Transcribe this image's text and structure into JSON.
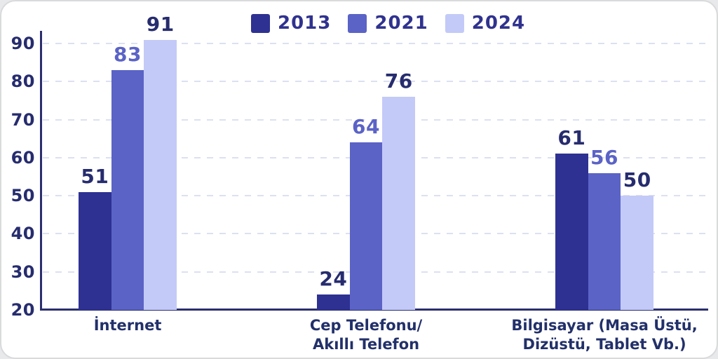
{
  "colors": {
    "page_background": "#e8e9ea",
    "card_background": "#ffffff",
    "card_border": "#d9dadc",
    "axis": "#2b2f6e",
    "gridline": "#dce0f2",
    "tick_text": "#262c6e",
    "category_text": "#22306a",
    "legend_text": "#30328f"
  },
  "legend": {
    "items": [
      {
        "label": "2013",
        "color": "#2e3192"
      },
      {
        "label": "2021",
        "color": "#5b63c6"
      },
      {
        "label": "2024",
        "color": "#c3caf8"
      }
    ]
  },
  "chart_data": {
    "type": "bar",
    "title": "",
    "xlabel": "",
    "ylabel": "",
    "categories": [
      "İnternet",
      "Cep Telefonu/\nAkıllı Telefon",
      "Bilgisayar (Masa Üstü,\nDizüstü, Tablet Vb.)"
    ],
    "series": [
      {
        "name": "2013",
        "color": "#2e3192",
        "value_label_color": "#262c6e",
        "values": [
          51,
          24,
          61
        ]
      },
      {
        "name": "2021",
        "color": "#5b63c6",
        "value_label_color": "#5b63c6",
        "values": [
          83,
          64,
          56
        ]
      },
      {
        "name": "2024",
        "color": "#c3caf8",
        "value_label_color": "#262c6e",
        "values": [
          91,
          76,
          50
        ]
      }
    ],
    "ylim": [
      20,
      90
    ],
    "yticks": [
      20,
      30,
      40,
      50,
      60,
      70,
      80,
      90
    ],
    "grid": "horizontal-dashed",
    "legend_position": "top-center",
    "value_labels": "above-bars"
  }
}
